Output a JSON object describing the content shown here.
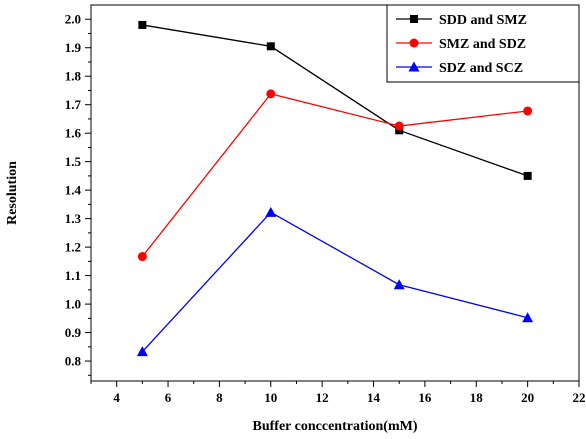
{
  "chart_data": {
    "type": "line",
    "xlabel": "Buffer conccentration(mM)",
    "ylabel": "Resolution",
    "xlim": [
      3,
      22
    ],
    "ylim": [
      0.73,
      2.05
    ],
    "x_ticks": [
      "4",
      "6",
      "8",
      "10",
      "12",
      "14",
      "16",
      "18",
      "20",
      "22"
    ],
    "y_ticks": [
      "0.8",
      "0.9",
      "1.0",
      "1.1",
      "1.2",
      "1.3",
      "1.4",
      "1.5",
      "1.6",
      "1.7",
      "1.8",
      "1.9",
      "2.0"
    ],
    "x": [
      5,
      10,
      15,
      20
    ],
    "series": [
      {
        "name": "SDD and SMZ",
        "color": "#000000",
        "marker": "square",
        "values": [
          1.98,
          1.905,
          1.61,
          1.45
        ]
      },
      {
        "name": "SMZ and SDZ",
        "color": "#ff0000",
        "marker": "circle",
        "values": [
          1.167,
          1.738,
          1.625,
          1.678
        ]
      },
      {
        "name": "SDZ and SCZ",
        "color": "#0000ff",
        "marker": "triangle",
        "values": [
          0.833,
          1.322,
          1.068,
          0.952
        ]
      }
    ],
    "legend_position": "top-right",
    "grid": false
  }
}
